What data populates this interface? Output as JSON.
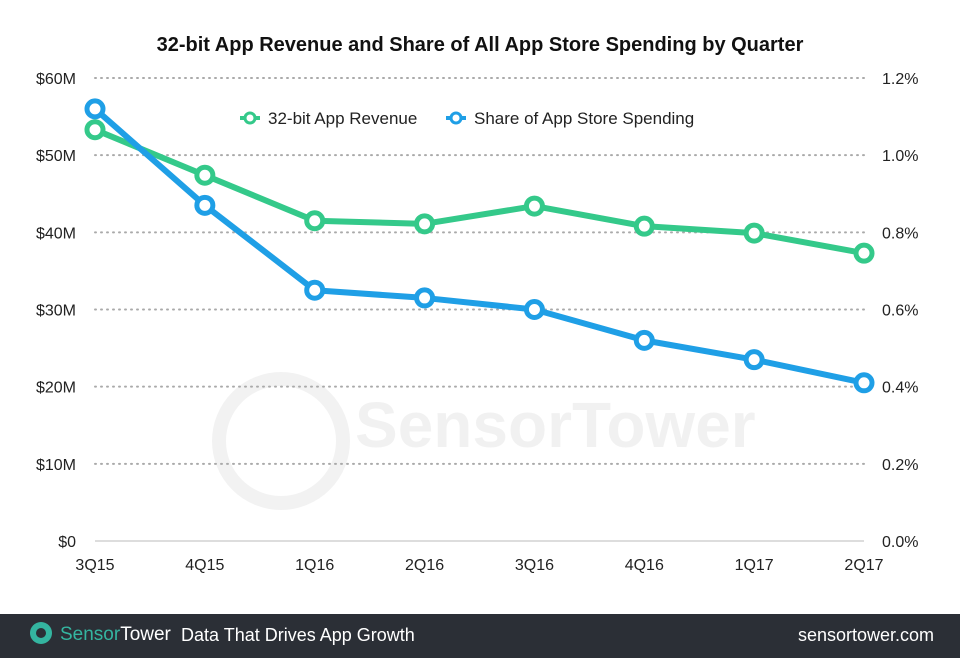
{
  "chart_data": {
    "type": "line",
    "title": "32-bit App Revenue and Share of All App Store Spending by Quarter",
    "categories": [
      "3Q15",
      "4Q15",
      "1Q16",
      "2Q16",
      "3Q16",
      "4Q16",
      "1Q17",
      "2Q17"
    ],
    "series": [
      {
        "name": "32-bit App Revenue",
        "axis": "left",
        "color": "#34c98a",
        "values": [
          53.3,
          47.4,
          41.5,
          41.1,
          43.4,
          40.8,
          39.9,
          37.3
        ]
      },
      {
        "name": "Share of App Store Spending",
        "axis": "right",
        "color": "#1f9fe6",
        "values": [
          1.12,
          0.87,
          0.65,
          0.63,
          0.6,
          0.52,
          0.47,
          0.41
        ]
      }
    ],
    "left_axis": {
      "ylim": [
        0,
        60
      ],
      "ticks": [
        0,
        10,
        20,
        30,
        40,
        50,
        60
      ],
      "tick_labels": [
        "$0",
        "$10M",
        "$20M",
        "$30M",
        "$40M",
        "$50M",
        "$60M"
      ]
    },
    "right_axis": {
      "ylim": [
        0,
        1.2
      ],
      "ticks": [
        0,
        0.2,
        0.4,
        0.6,
        0.8,
        1.0,
        1.2
      ],
      "tick_labels": [
        "0.0%",
        "0.2%",
        "0.4%",
        "0.6%",
        "0.8%",
        "1.0%",
        "1.2%"
      ]
    },
    "grid": "horizontal dotted",
    "legend": "top"
  },
  "watermark": "SensorTower",
  "footer": {
    "brand_a": "Sensor",
    "brand_b": "Tower",
    "tagline": "Data That Drives App Growth",
    "site": "sensortower.com",
    "background": "#2b2f36"
  }
}
